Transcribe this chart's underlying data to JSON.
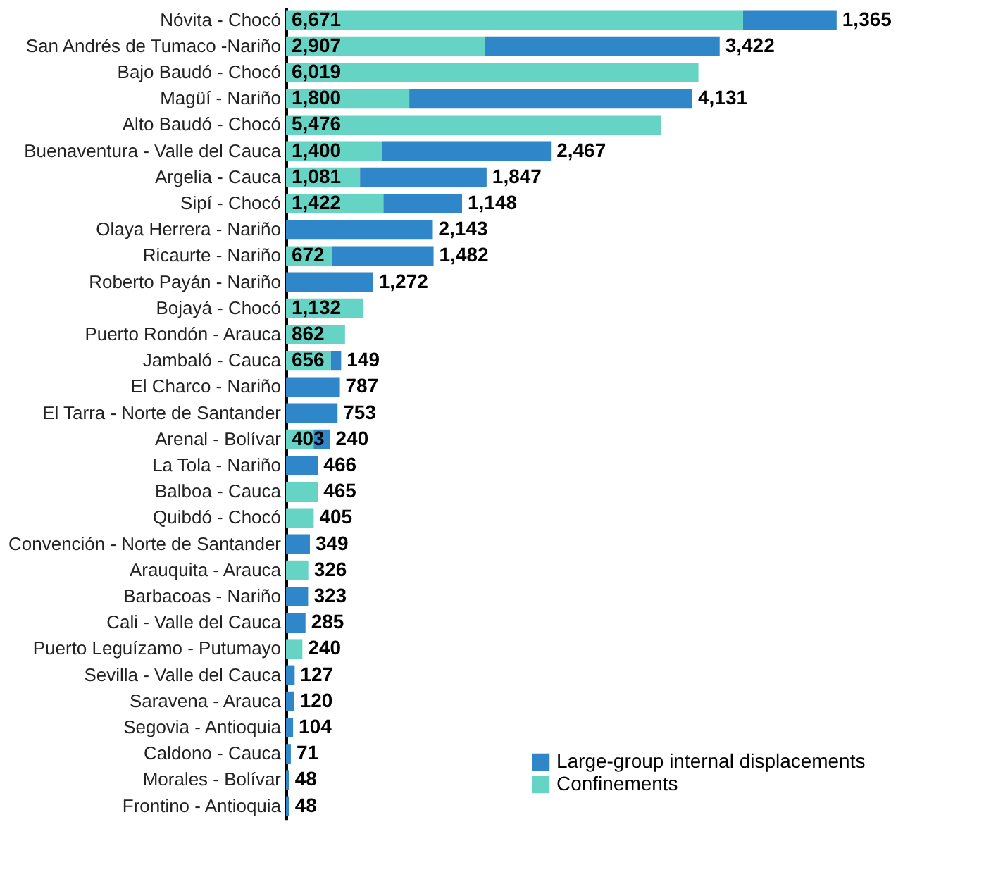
{
  "chart_data": {
    "type": "bar",
    "orientation": "horizontal",
    "stacked": true,
    "grid": false,
    "legend": "bottom right",
    "categories": [
      "Nóvita - Chocó",
      "San Andrés de Tumaco -Nariño",
      "Bajo Baudó - Chocó",
      "Magüí - Nariño",
      "Alto Baudó - Chocó",
      "Buenaventura - Valle del Cauca",
      "Argelia - Cauca",
      "Sipí - Chocó",
      "Olaya Herrera - Nariño",
      "Ricaurte - Nariño",
      "Roberto Payán - Nariño",
      "Bojayá - Chocó",
      "Puerto Rondón - Arauca",
      "Jambaló - Cauca",
      "El Charco - Nariño",
      "El Tarra - Norte de Santander",
      "Arenal - Bolívar",
      "La Tola - Nariño",
      "Balboa - Cauca",
      "Quibdó - Chocó",
      "Convención - Norte de Santander",
      "Arauquita - Arauca",
      "Barbacoas - Nariño",
      "Cali - Valle del Cauca",
      "Puerto Leguízamo - Putumayo",
      "Sevilla - Valle del Cauca",
      "Saravena - Arauca",
      "Segovia - Antioquia",
      "Caldono - Cauca",
      "Morales - Bolívar",
      "Frontino - Antioquia"
    ],
    "series": [
      {
        "name": "Confinements",
        "color": "#66d4c4",
        "values": [
          6671,
          2907,
          6019,
          1800,
          5476,
          1400,
          1081,
          1422,
          null,
          672,
          null,
          1132,
          862,
          656,
          null,
          null,
          403,
          null,
          465,
          405,
          null,
          326,
          null,
          null,
          240,
          null,
          null,
          null,
          null,
          null,
          null
        ],
        "value_labels": [
          "6,671",
          "2,907",
          "6,019",
          "1,800",
          "5,476",
          "1,400",
          "1,081",
          "1,422",
          null,
          "672",
          null,
          "1,132",
          "862",
          "656",
          null,
          null,
          "403",
          null,
          "465",
          "405",
          null,
          "326",
          null,
          null,
          "240",
          null,
          null,
          null,
          null,
          null,
          null
        ]
      },
      {
        "name": "Large-group internal displacements",
        "color": "#2f86c9",
        "values": [
          1365,
          3422,
          null,
          4131,
          null,
          2467,
          1847,
          1148,
          2143,
          1482,
          1272,
          null,
          null,
          149,
          787,
          753,
          240,
          466,
          null,
          null,
          349,
          null,
          323,
          285,
          null,
          127,
          120,
          104,
          71,
          48,
          48
        ],
        "value_labels": [
          "1,365",
          "3,422",
          null,
          "4,131",
          null,
          "2,467",
          "1,847",
          "1,148",
          "2,143",
          "1,482",
          "1,272",
          null,
          null,
          "149",
          "787",
          "753",
          "240",
          "466",
          null,
          null,
          "349",
          null,
          "323",
          "285",
          null,
          "127",
          "120",
          "104",
          "71",
          "48",
          "48"
        ]
      }
    ]
  }
}
